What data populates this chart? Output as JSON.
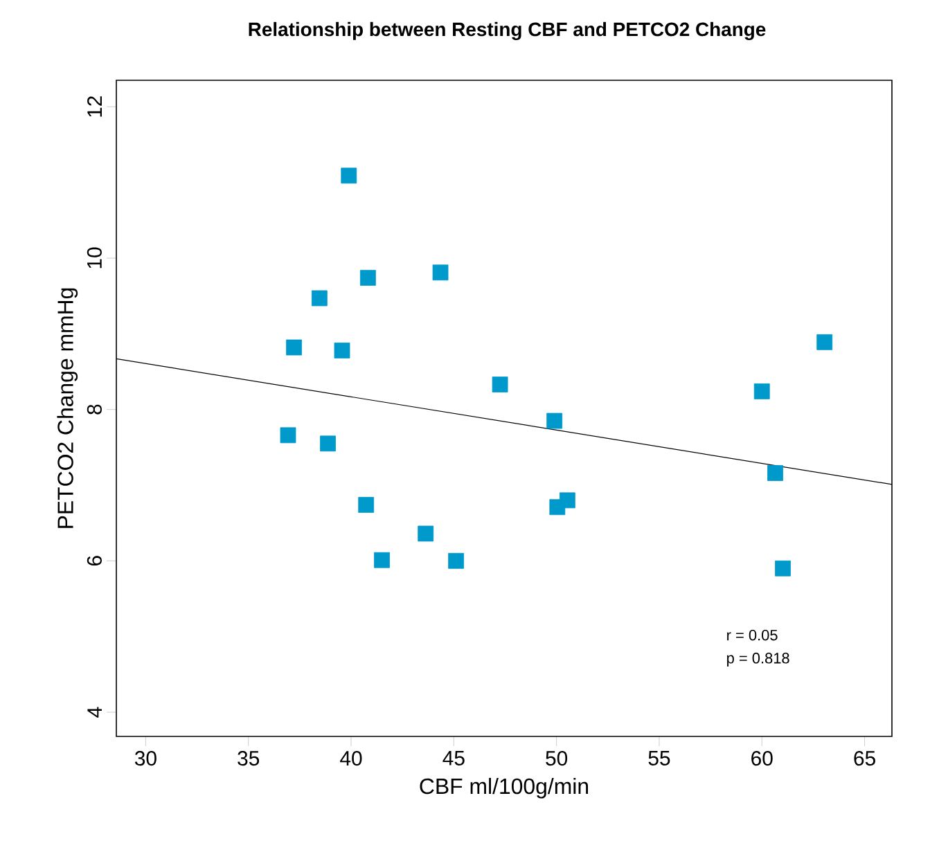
{
  "chart_data": {
    "type": "scatter",
    "title": "Relationship between Resting CBF and PETCO2 Change",
    "xlabel": "CBF ml/100g/min",
    "ylabel": "PETCO2 Change mmHg",
    "annotations": [
      "r = 0.05",
      "p = 0.818"
    ],
    "xlim": [
      28.57,
      66.33
    ],
    "ylim": [
      3.68,
      12.35
    ],
    "xticks": [
      30,
      35,
      40,
      45,
      50,
      55,
      60,
      65
    ],
    "yticks": [
      4,
      6,
      8,
      10,
      12
    ],
    "grid": false,
    "series": [
      {
        "type": "scatter",
        "marker": "square",
        "color": "#0099cc",
        "x": [
          39.89,
          38.46,
          40.82,
          44.35,
          37.22,
          39.56,
          47.25,
          63.05,
          60.0,
          49.9,
          60.65,
          50.53,
          50.04,
          61.02,
          36.93,
          38.87,
          40.73,
          43.63,
          41.5,
          45.11
        ],
        "values": [
          11.09,
          9.47,
          9.74,
          9.81,
          8.82,
          8.78,
          8.33,
          8.89,
          8.24,
          7.85,
          7.16,
          6.8,
          6.71,
          5.9,
          7.66,
          7.55,
          6.74,
          6.36,
          6.01,
          6.0
        ]
      },
      {
        "type": "line",
        "marker": "none",
        "color": "#000000",
        "x": [
          28.57,
          66.33
        ],
        "values": [
          8.67,
          7.01
        ]
      }
    ]
  }
}
